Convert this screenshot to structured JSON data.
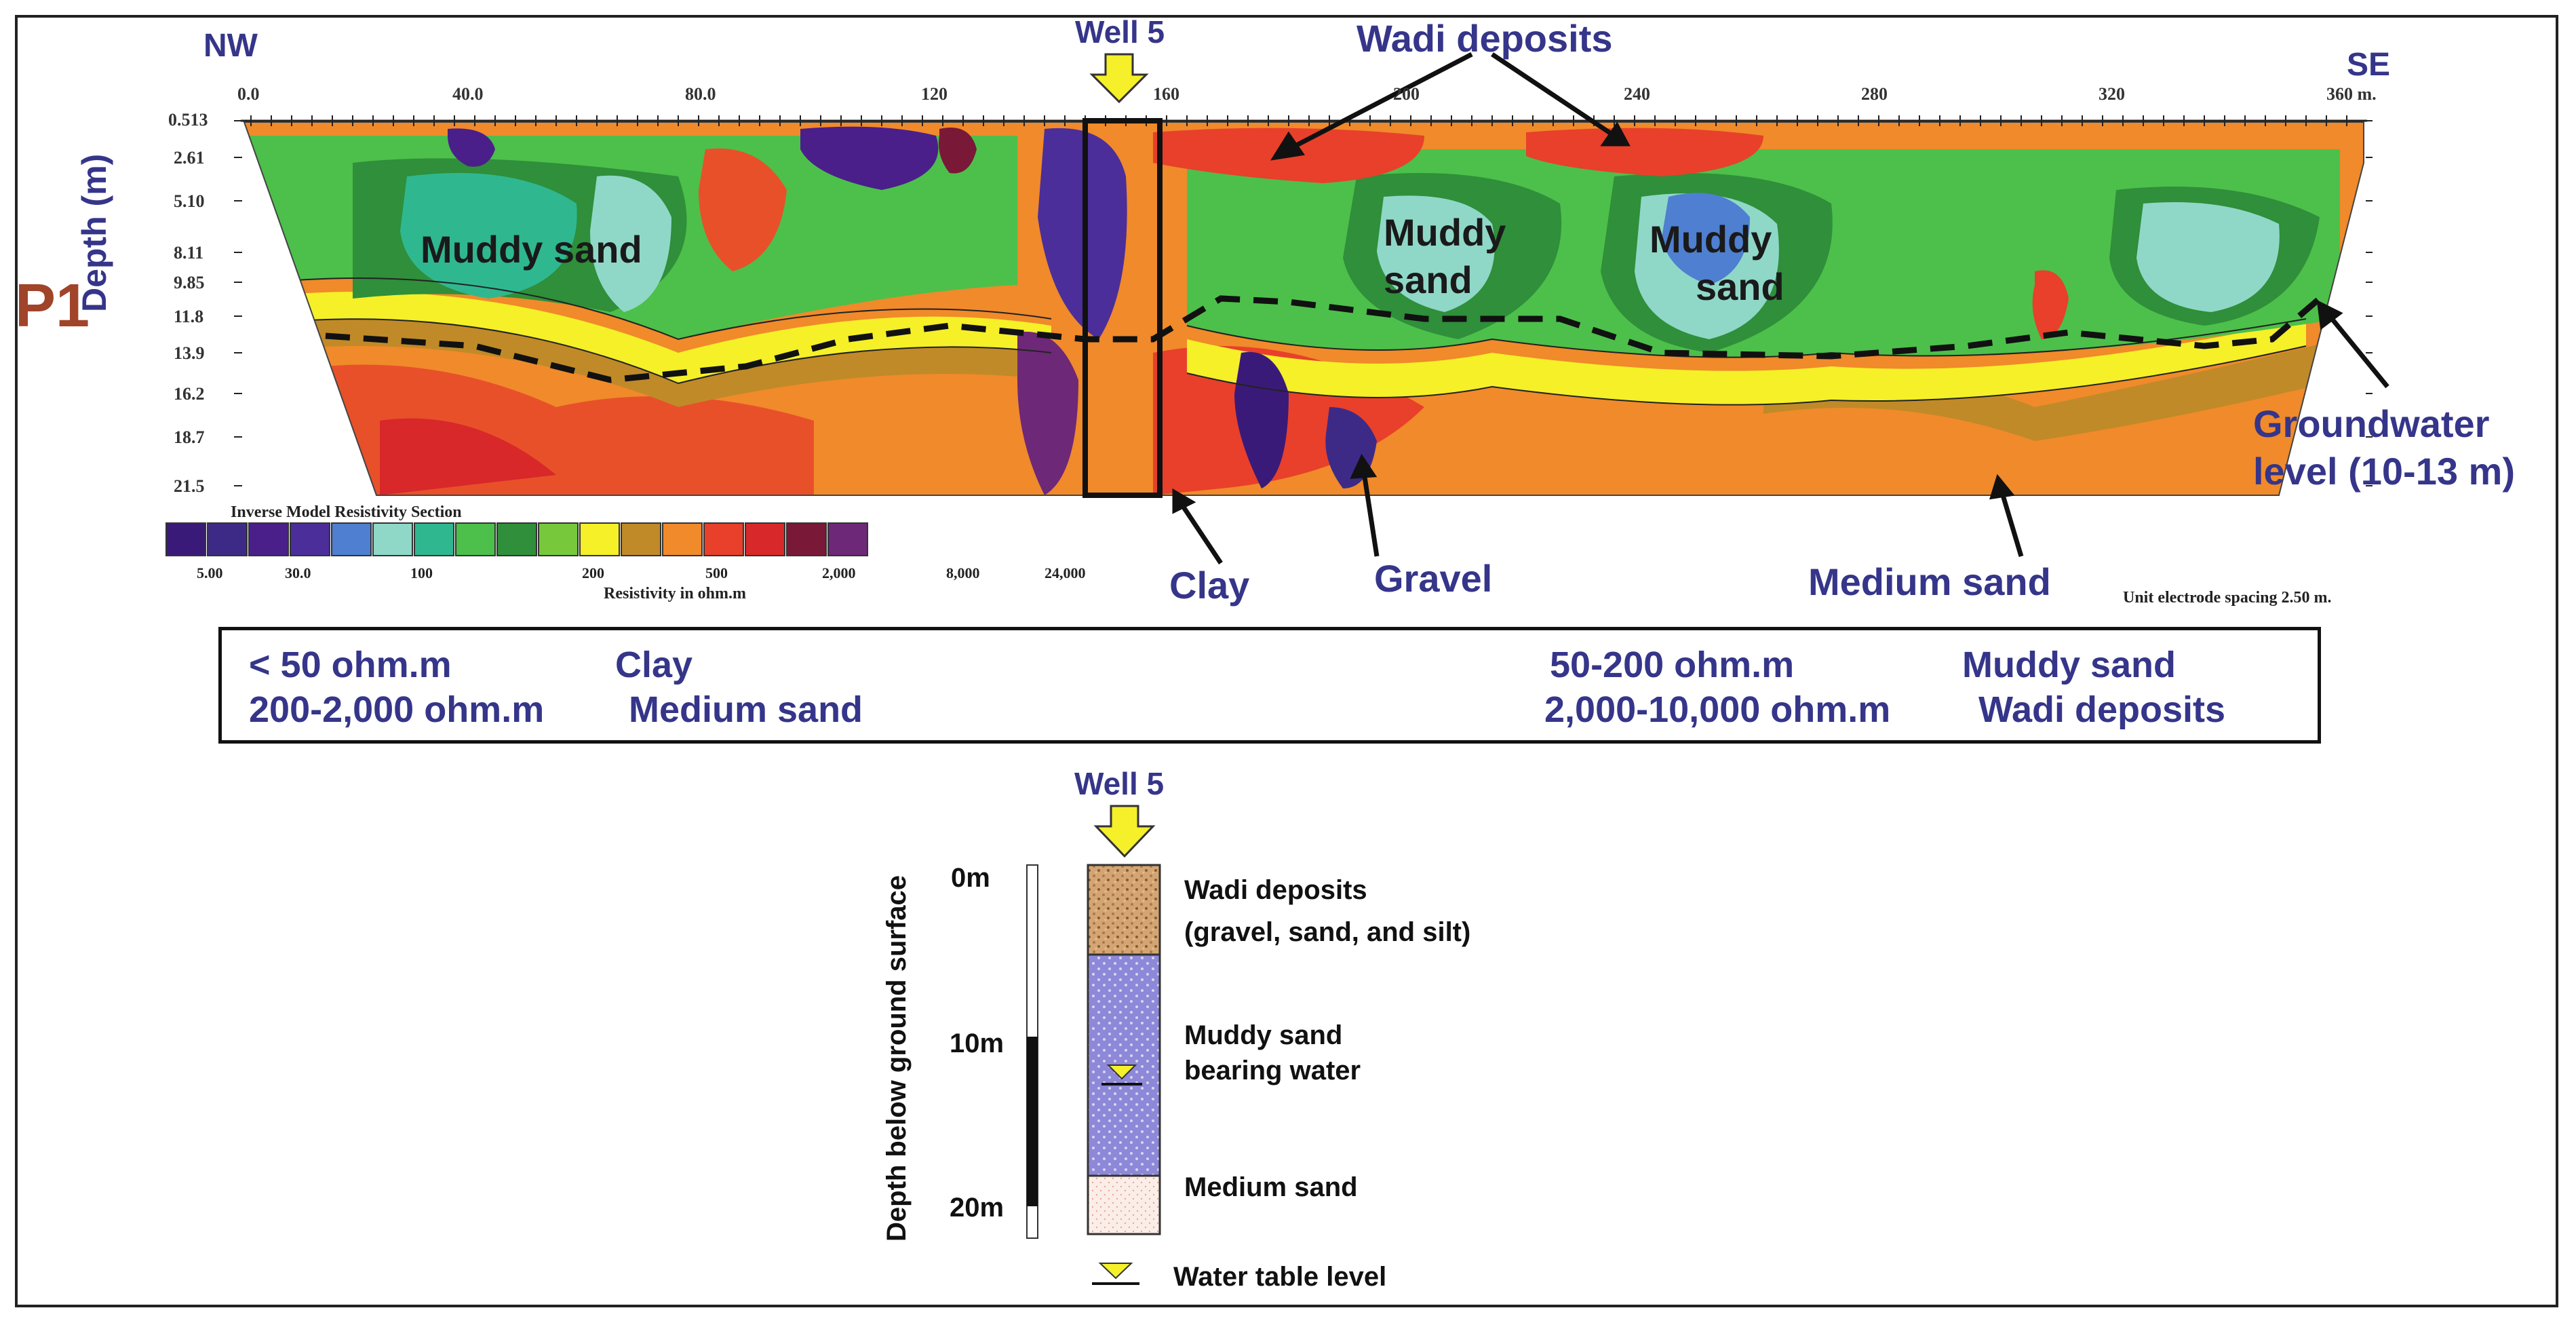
{
  "profile": {
    "label": "P1",
    "nw": "NW",
    "se": "SE",
    "y_axis_label": "Depth (m)",
    "x_ticks": [
      "0.0",
      "40.0",
      "80.0",
      "120",
      "160",
      "200",
      "240",
      "280",
      "320",
      "360 m."
    ],
    "depth_ticks": [
      "0.513",
      "2.61",
      "5.10",
      "8.11",
      "9.85",
      "11.8",
      "13.9",
      "16.2",
      "18.7",
      "21.5"
    ],
    "well_label": "Well 5",
    "wadi_label": "Wadi deposits",
    "muddy_sand_left": "Muddy sand",
    "muddy_sand_mid_1": "Muddy",
    "muddy_sand_mid_2": "sand",
    "muddy_sand_right_1": "Muddy",
    "muddy_sand_right_2": "sand",
    "groundwater_1": "Groundwater",
    "groundwater_2": "level (10-13 m)",
    "clay": "Clay",
    "gravel": "Gravel",
    "medium_sand": "Medium sand",
    "electrode_note": "Unit electrode spacing 2.50 m."
  },
  "legend": {
    "title": "Inverse Model Resistivity Section",
    "subtitle": "Resistivity in ohm.m",
    "values": [
      "5.00",
      "30.0",
      "100",
      "200",
      "500",
      "2,000",
      "8,000",
      "24,000"
    ],
    "colors": [
      "#3a1a78",
      "#3d2a86",
      "#4a1f8a",
      "#4b2e9a",
      "#4f7fd0",
      "#8fd8c8",
      "#2fb890",
      "#4cc04a",
      "#2f8f3a",
      "#78c83c",
      "#f5f028",
      "#c08a28",
      "#f08a2a",
      "#e8402a",
      "#d8282a",
      "#7a1838",
      "#6e2878"
    ]
  },
  "table": {
    "r1c1": "< 50 ohm.m",
    "r1c2": "Clay",
    "r1c3": "50-200 ohm.m",
    "r1c4": "Muddy sand",
    "r2c1": "200-2,000 ohm.m",
    "r2c2": "Medium sand",
    "r2c3": "2,000-10,000 ohm.m",
    "r2c4": "Wadi deposits"
  },
  "well_log": {
    "title": "Well 5",
    "axis_label": "Depth below ground surface",
    "depth_0": "0m",
    "depth_10": "10m",
    "depth_20": "20m",
    "layer1_line1": "Wadi deposits",
    "layer1_line2": "(gravel, sand, and silt)",
    "layer2_line1": "Muddy sand",
    "layer2_line2": "bearing water",
    "layer3": "Medium sand",
    "water_table_legend": "Water table level"
  }
}
